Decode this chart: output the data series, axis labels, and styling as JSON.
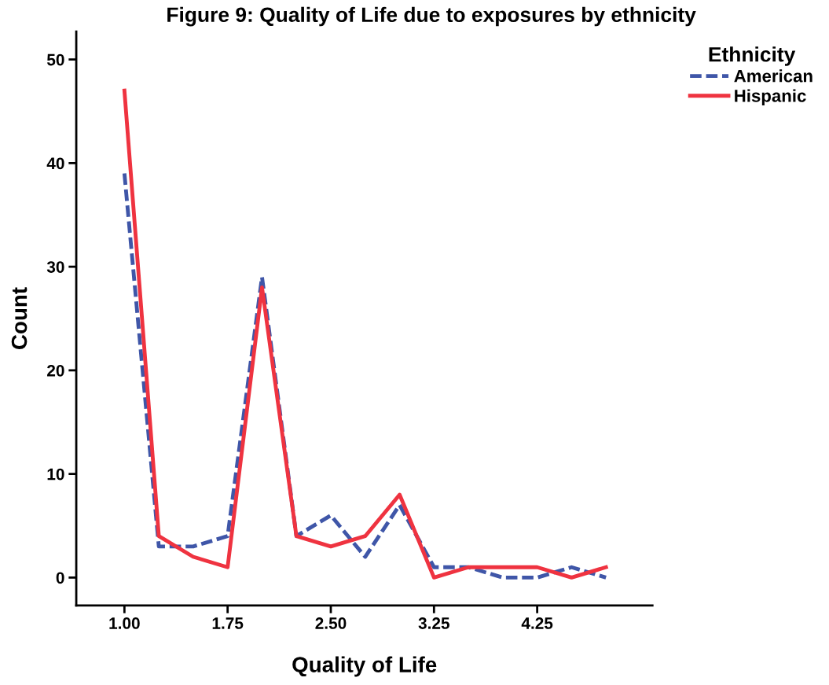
{
  "chart_data": {
    "type": "line",
    "title": "Figure 9: Quality of Life due to exposures by ethnicity",
    "xlabel": "Quality of Life",
    "ylabel": "Count",
    "legend_title": "Ethnicity",
    "legend": "top right",
    "categories": [
      "1.00",
      null,
      null,
      "1.75",
      null,
      null,
      "2.50",
      null,
      null,
      "3.25",
      null,
      null,
      "4.25",
      null,
      null
    ],
    "series": [
      {
        "name": "American",
        "color": "#3f56a8",
        "line_style": "dashed",
        "values": [
          39,
          3,
          3,
          4,
          29,
          4,
          6,
          2,
          7,
          1,
          1,
          0,
          0,
          1,
          0
        ]
      },
      {
        "name": "Hispanic",
        "color": "#ef3340",
        "line_style": "solid",
        "values": [
          47,
          4,
          2,
          1,
          28,
          4,
          3,
          4,
          8,
          0,
          1,
          1,
          1,
          0,
          1
        ]
      }
    ],
    "ylim": [
      -2.7,
      52.7
    ],
    "yticks": [
      0,
      10,
      20,
      30,
      40,
      50
    ],
    "grid": false
  }
}
